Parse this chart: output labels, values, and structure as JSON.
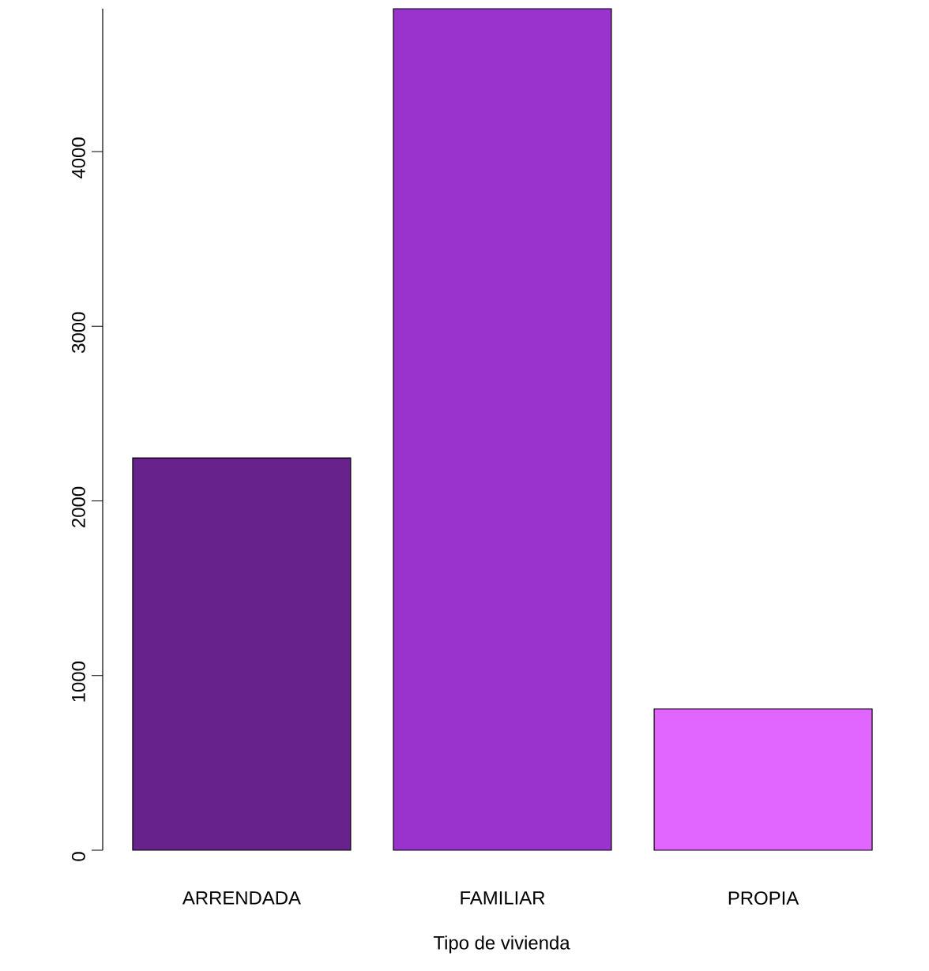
{
  "chart_data": {
    "type": "bar",
    "xlabel": "Tipo de vivienda",
    "categories": [
      "ARRENDADA",
      "FAMILIAR",
      "PROPIA"
    ],
    "values": [
      2246,
      4818,
      809
    ],
    "colors": [
      "#68228b",
      "#9a32cd",
      "#e066ff"
    ],
    "ylim": [
      0,
      4818
    ],
    "yticks": [
      0,
      1000,
      2000,
      3000,
      4000
    ]
  }
}
